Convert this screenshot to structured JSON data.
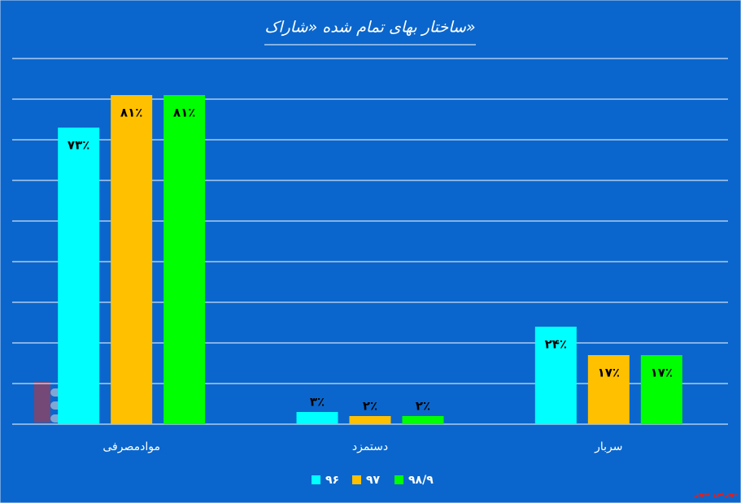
{
  "chart_data": {
    "type": "bar",
    "title": "ساختار بهای تمام شده «شاراک»",
    "categories": [
      "موادمصرفی",
      "دستمزد",
      "سربار"
    ],
    "series": [
      {
        "name": "۹۶",
        "color": "#00ffff",
        "values": [
          73,
          3,
          24
        ],
        "value_labels": [
          "۷۳٪",
          "۳٪",
          "۲۴٪"
        ]
      },
      {
        "name": "۹۷",
        "color": "#ffc000",
        "values": [
          81,
          2,
          17
        ],
        "value_labels": [
          "۸۱٪",
          "۲٪",
          "۱۷٪"
        ]
      },
      {
        "name": "۹۸/۹",
        "color": "#00ff00",
        "values": [
          81,
          2,
          17
        ],
        "value_labels": [
          "۸۱٪",
          "۲٪",
          "۱۷٪"
        ]
      }
    ],
    "ylim": [
      0,
      90
    ],
    "yticks": [
      0,
      10,
      20,
      30,
      40,
      50,
      60,
      70,
      80,
      90
    ],
    "grid": true,
    "legend": "bottom",
    "watermark": "بورس نیوز"
  }
}
